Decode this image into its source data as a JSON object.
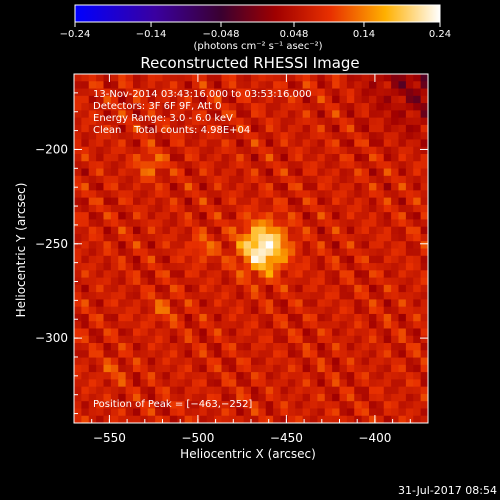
{
  "chart_data": {
    "type": "heatmap",
    "title": "Reconstructed RHESSI Image",
    "xlabel": "Heliocentric X (arcsec)",
    "ylabel": "Heliocentric Y (arcsec)",
    "xlim": [
      -570,
      -370
    ],
    "ylim": [
      -345,
      -160
    ],
    "xticks": [
      -550,
      -500,
      -450,
      -400
    ],
    "xtick_labels": [
      "−550",
      "−500",
      "−450",
      "−400"
    ],
    "yticks": [
      -200,
      -250,
      -300
    ],
    "ytick_labels": [
      "−200",
      "−250",
      "−300"
    ],
    "colorbar": {
      "min": -0.24,
      "max": 0.24,
      "ticks": [
        -0.24,
        -0.14,
        -0.048,
        0.048,
        0.14,
        0.24
      ],
      "tick_labels": [
        "−0.24",
        "−0.14",
        "−0.048",
        "0.048",
        "0.14",
        "0.24"
      ],
      "units_label": "(photons cm⁻² s⁻¹ asec⁻²)",
      "colormap": "blue-purple-red-yellow-white"
    },
    "annotations": [
      "13-Nov-2014 03:43:16.000 to 03:53:16.000",
      "Detectors: 3F 6F 9F, Att 0",
      "Energy Range: 3.0 - 6.0 keV",
      "Clean    Total counts: 4.98E+04"
    ],
    "peak_label": "Position of Peak = [−463,−252]",
    "peak": {
      "x": -463,
      "y": -252,
      "value": 0.24
    },
    "secondary_sources": [
      {
        "x": -527,
        "y": -208,
        "value": 0.13
      },
      {
        "x": -497,
        "y": -252,
        "value": 0.12
      },
      {
        "x": -520,
        "y": -285,
        "value": 0.11
      },
      {
        "x": -548,
        "y": -318,
        "value": 0.1
      }
    ],
    "background_level": 0.07
  },
  "footer": {
    "timestamp": "31-Jul-2017 08:54"
  }
}
